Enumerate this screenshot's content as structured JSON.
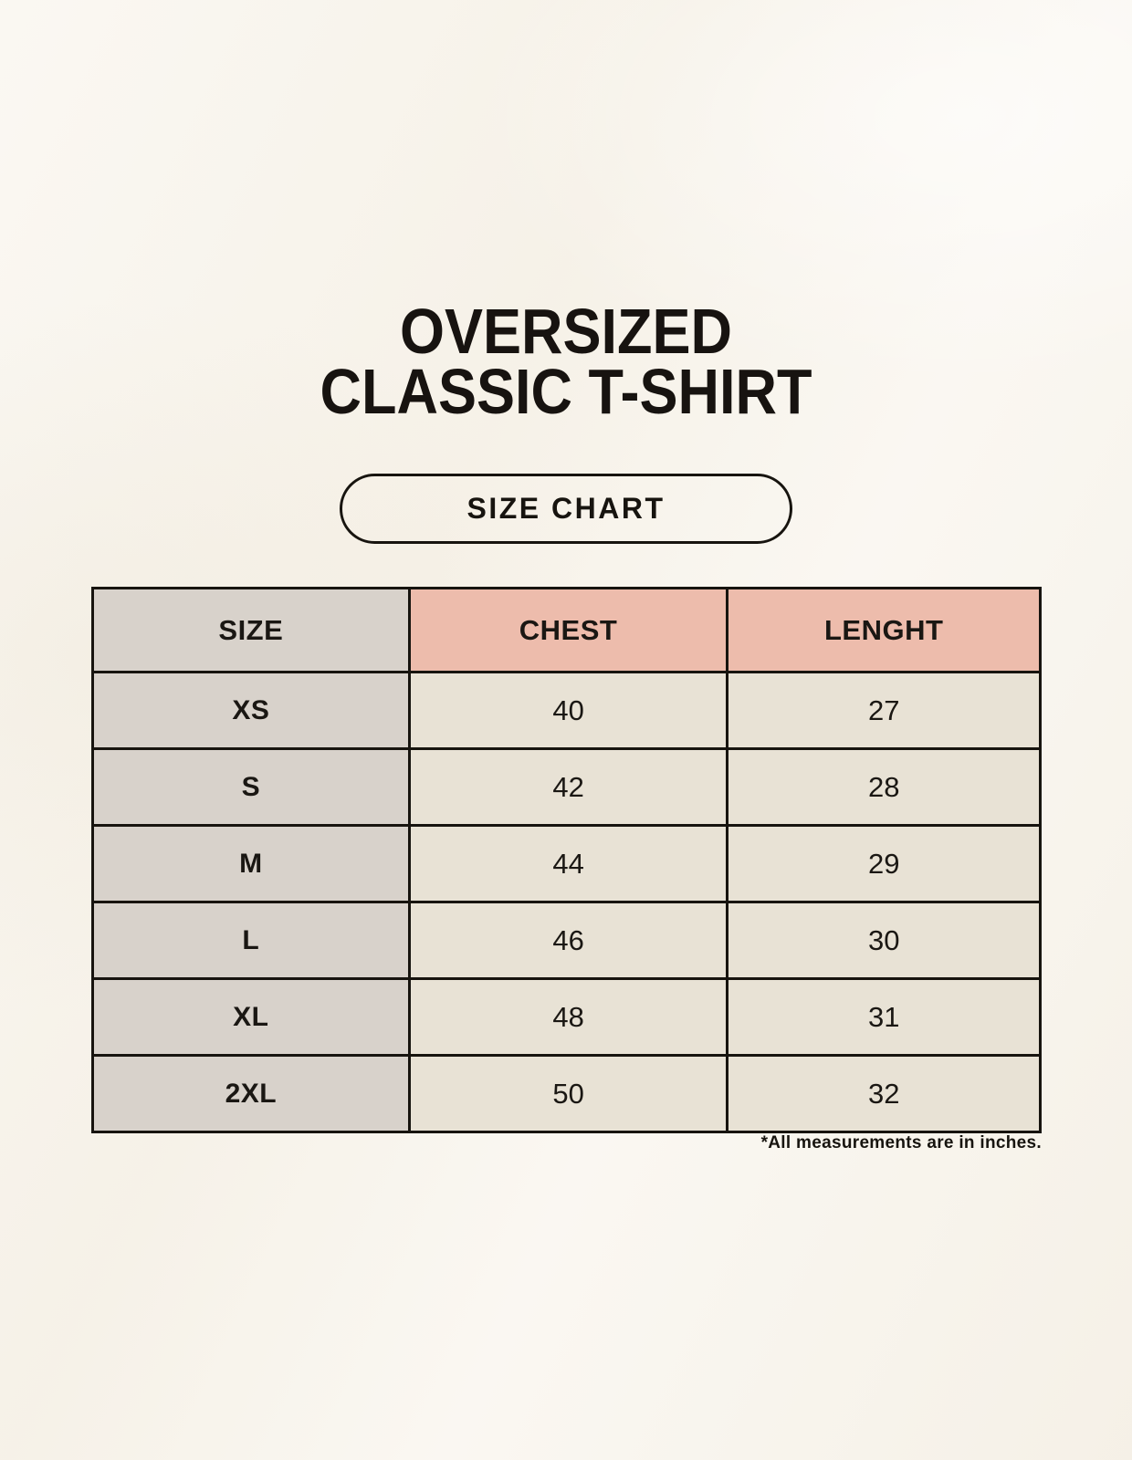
{
  "page": {
    "title_line1": "OVERSIZED",
    "title_line2": "CLASSIC T-SHIRT",
    "button_label": "SIZE CHART",
    "footnote": "*All measurements are in inches."
  },
  "colors": {
    "background": "#f8f4ec",
    "header_size_bg": "#d8d2cb",
    "header_measure_bg": "#edbcac",
    "size_column_bg": "#d8d2cb",
    "value_cell_bg": "#e8e2d5",
    "border": "#17140f",
    "text": "#171310"
  },
  "chart_data": {
    "type": "table",
    "title": "OVERSIZED CLASSIC T-SHIRT — SIZE CHART",
    "unit_note": "*All measurements are in inches.",
    "columns": [
      "SIZE",
      "CHEST",
      "LENGHT"
    ],
    "rows": [
      [
        "XS",
        "40",
        "27"
      ],
      [
        "S",
        "42",
        "28"
      ],
      [
        "M",
        "44",
        "29"
      ],
      [
        "L",
        "46",
        "30"
      ],
      [
        "XL",
        "48",
        "31"
      ],
      [
        "2XL",
        "50",
        "32"
      ]
    ]
  }
}
